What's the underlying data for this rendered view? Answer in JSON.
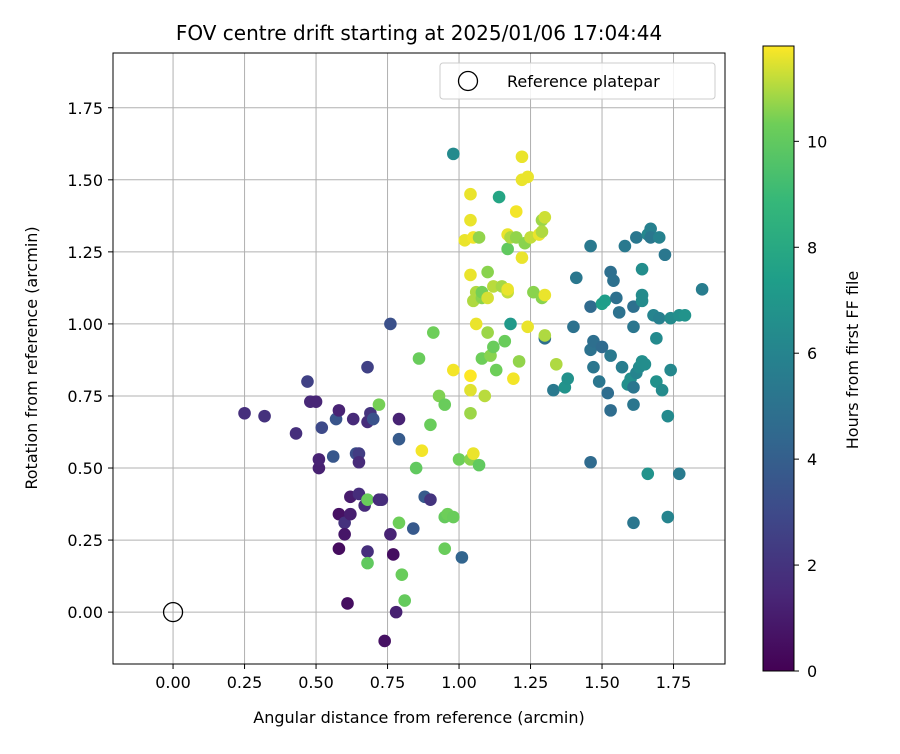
{
  "chart_data": {
    "type": "scatter",
    "title": "FOV centre drift starting at 2025/01/06 17:04:44",
    "xlabel": "Angular distance from reference (arcmin)",
    "ylabel": "Rotation from reference (arcmin)",
    "xlim": [
      -0.21,
      1.93
    ],
    "ylim": [
      -0.18,
      1.94
    ],
    "xticks": [
      0.0,
      0.25,
      0.5,
      0.75,
      1.0,
      1.25,
      1.5,
      1.75
    ],
    "xtick_labels": [
      "0.00",
      "0.25",
      "0.50",
      "0.75",
      "1.00",
      "1.25",
      "1.50",
      "1.75"
    ],
    "yticks": [
      0.0,
      0.25,
      0.5,
      0.75,
      1.0,
      1.25,
      1.5,
      1.75
    ],
    "ytick_labels": [
      "0.00",
      "0.25",
      "0.50",
      "0.75",
      "1.00",
      "1.25",
      "1.50",
      "1.75"
    ],
    "grid": true,
    "legend": {
      "position": "top-right",
      "entries": [
        {
          "label": "Reference platepar",
          "marker": "open-circle"
        }
      ]
    },
    "reference_point": {
      "x": 0.0,
      "y": 0.0
    },
    "colorbar": {
      "label": "Hours from first FF file",
      "colormap": "viridis",
      "range": [
        0,
        11.8
      ],
      "ticks": [
        0,
        2,
        4,
        6,
        8,
        10
      ],
      "tick_labels": [
        "0",
        "2",
        "4",
        "6",
        "8",
        "10"
      ]
    },
    "points_columns": [
      "x",
      "y",
      "hours"
    ],
    "points": [
      [
        0.25,
        0.69,
        1.8
      ],
      [
        0.32,
        0.68,
        1.9
      ],
      [
        0.43,
        0.62,
        1.8
      ],
      [
        0.47,
        0.8,
        2.6
      ],
      [
        0.48,
        0.73,
        1.5
      ],
      [
        0.5,
        0.73,
        1.4
      ],
      [
        0.51,
        0.5,
        1.2
      ],
      [
        0.51,
        0.53,
        1.3
      ],
      [
        0.52,
        0.64,
        3.0
      ],
      [
        0.57,
        0.67,
        3.5
      ],
      [
        0.56,
        0.54,
        3.6
      ],
      [
        0.58,
        0.7,
        1.3
      ],
      [
        0.58,
        0.34,
        0.6
      ],
      [
        0.58,
        0.22,
        0.4
      ],
      [
        0.6,
        0.31,
        1.9
      ],
      [
        0.6,
        0.27,
        0.8
      ],
      [
        0.61,
        0.03,
        0.5
      ],
      [
        0.62,
        0.34,
        1.1
      ],
      [
        0.62,
        0.4,
        1.0
      ],
      [
        0.63,
        0.67,
        1.6
      ],
      [
        0.64,
        0.55,
        3.3
      ],
      [
        0.65,
        0.55,
        2.4
      ],
      [
        0.65,
        0.41,
        1.7
      ],
      [
        0.65,
        0.52,
        1.6
      ],
      [
        0.67,
        0.37,
        1.6
      ],
      [
        0.68,
        0.85,
        2.6
      ],
      [
        0.68,
        0.21,
        1.8
      ],
      [
        0.68,
        0.66,
        1.7
      ],
      [
        0.69,
        0.69,
        2.0
      ],
      [
        0.7,
        0.67,
        3.4
      ],
      [
        0.68,
        0.39,
        10.2
      ],
      [
        0.68,
        0.17,
        10.0
      ],
      [
        0.72,
        0.72,
        10.4
      ],
      [
        0.72,
        0.39,
        1.6
      ],
      [
        0.73,
        0.39,
        1.7
      ],
      [
        0.74,
        -0.1,
        0.6
      ],
      [
        0.76,
        1.0,
        3.3
      ],
      [
        0.76,
        0.27,
        1.3
      ],
      [
        0.77,
        0.2,
        0.5
      ],
      [
        0.78,
        0.0,
        1.2
      ],
      [
        0.79,
        0.67,
        1.3
      ],
      [
        0.79,
        0.6,
        3.8
      ],
      [
        0.79,
        0.31,
        10.3
      ],
      [
        0.8,
        0.13,
        10.2
      ],
      [
        0.81,
        0.04,
        10.1
      ],
      [
        0.84,
        0.29,
        3.7
      ],
      [
        0.85,
        0.5,
        10.0
      ],
      [
        0.86,
        0.88,
        10.2
      ],
      [
        0.87,
        0.56,
        11.7
      ],
      [
        0.88,
        0.4,
        3.8
      ],
      [
        0.9,
        0.39,
        2.0
      ],
      [
        0.9,
        0.65,
        10.2
      ],
      [
        0.91,
        0.97,
        10.3
      ],
      [
        0.93,
        0.75,
        10.5
      ],
      [
        0.95,
        0.72,
        10.2
      ],
      [
        0.95,
        0.33,
        10.1
      ],
      [
        0.95,
        0.22,
        10.2
      ],
      [
        0.96,
        0.34,
        10.3
      ],
      [
        0.98,
        0.33,
        10.2
      ],
      [
        0.98,
        0.84,
        11.7
      ],
      [
        0.98,
        1.59,
        6.3
      ],
      [
        1.0,
        0.53,
        10.3
      ],
      [
        1.01,
        0.19,
        4.3
      ],
      [
        1.02,
        1.29,
        11.6
      ],
      [
        1.04,
        0.82,
        11.8
      ],
      [
        1.04,
        0.77,
        11.5
      ],
      [
        1.04,
        0.69,
        10.8
      ],
      [
        1.04,
        1.17,
        11.6
      ],
      [
        1.04,
        1.36,
        11.6
      ],
      [
        1.04,
        1.45,
        11.6
      ],
      [
        1.04,
        0.53,
        10.6
      ],
      [
        1.05,
        0.55,
        11.6
      ],
      [
        1.05,
        1.08,
        11.0
      ],
      [
        1.05,
        1.3,
        11.7
      ],
      [
        1.06,
        1.11,
        11.0
      ],
      [
        1.06,
        1.0,
        11.6
      ],
      [
        1.07,
        1.3,
        10.7
      ],
      [
        1.07,
        0.51,
        10.0
      ],
      [
        1.08,
        1.09,
        10.6
      ],
      [
        1.08,
        1.11,
        10.4
      ],
      [
        1.08,
        0.88,
        10.3
      ],
      [
        1.09,
        0.75,
        11.1
      ],
      [
        1.1,
        1.09,
        11.4
      ],
      [
        1.1,
        1.18,
        10.6
      ],
      [
        1.1,
        0.97,
        10.8
      ],
      [
        1.11,
        0.89,
        10.6
      ],
      [
        1.12,
        0.92,
        10.2
      ],
      [
        1.12,
        1.13,
        11.1
      ],
      [
        1.13,
        0.84,
        10.3
      ],
      [
        1.14,
        1.44,
        7.8
      ],
      [
        1.15,
        1.13,
        10.9
      ],
      [
        1.16,
        0.94,
        10.2
      ],
      [
        1.17,
        1.26,
        10.0
      ],
      [
        1.17,
        1.31,
        11.6
      ],
      [
        1.17,
        1.11,
        11.2
      ],
      [
        1.17,
        1.12,
        11.6
      ],
      [
        1.18,
        1.0,
        7.1
      ],
      [
        1.18,
        1.3,
        11.0
      ],
      [
        1.19,
        0.81,
        11.7
      ],
      [
        1.2,
        1.39,
        11.7
      ],
      [
        1.2,
        1.3,
        10.7
      ],
      [
        1.21,
        0.87,
        10.7
      ],
      [
        1.22,
        1.58,
        11.6
      ],
      [
        1.22,
        1.5,
        11.6
      ],
      [
        1.22,
        1.23,
        11.6
      ],
      [
        1.23,
        1.28,
        10.6
      ],
      [
        1.24,
        1.51,
        11.6
      ],
      [
        1.24,
        0.99,
        11.6
      ],
      [
        1.25,
        1.3,
        11.2
      ],
      [
        1.26,
        1.11,
        10.6
      ],
      [
        1.28,
        1.31,
        11.6
      ],
      [
        1.29,
        1.36,
        10.8
      ],
      [
        1.29,
        1.32,
        11.0
      ],
      [
        1.29,
        1.09,
        10.6
      ],
      [
        1.3,
        0.95,
        4.8
      ],
      [
        1.3,
        0.96,
        11.0
      ],
      [
        1.3,
        1.37,
        11.3
      ],
      [
        1.3,
        1.1,
        11.6
      ],
      [
        1.33,
        0.77,
        5.4
      ],
      [
        1.34,
        0.86,
        11.0
      ],
      [
        1.37,
        0.78,
        6.8
      ],
      [
        1.38,
        0.81,
        6.7
      ],
      [
        1.4,
        0.99,
        5.0
      ],
      [
        1.41,
        1.16,
        5.3
      ],
      [
        1.46,
        1.27,
        5.4
      ],
      [
        1.46,
        1.06,
        4.6
      ],
      [
        1.46,
        0.91,
        5.0
      ],
      [
        1.46,
        0.52,
        4.6
      ],
      [
        1.47,
        0.94,
        4.8
      ],
      [
        1.47,
        0.85,
        5.2
      ],
      [
        1.49,
        0.8,
        5.2
      ],
      [
        1.5,
        1.07,
        7.5
      ],
      [
        1.5,
        0.92,
        4.6
      ],
      [
        1.51,
        1.08,
        7.4
      ],
      [
        1.52,
        0.76,
        4.7
      ],
      [
        1.53,
        0.89,
        5.4
      ],
      [
        1.53,
        1.18,
        4.8
      ],
      [
        1.53,
        0.7,
        4.7
      ],
      [
        1.54,
        1.15,
        4.9
      ],
      [
        1.55,
        1.09,
        4.9
      ],
      [
        1.56,
        1.04,
        5.0
      ],
      [
        1.57,
        0.85,
        5.6
      ],
      [
        1.58,
        1.27,
        5.4
      ],
      [
        1.59,
        0.79,
        6.6
      ],
      [
        1.6,
        0.81,
        6.6
      ],
      [
        1.61,
        0.31,
        5.2
      ],
      [
        1.61,
        0.72,
        5.2
      ],
      [
        1.61,
        0.99,
        5.2
      ],
      [
        1.61,
        1.06,
        4.9
      ],
      [
        1.61,
        0.78,
        5.2
      ],
      [
        1.62,
        0.83,
        6.0
      ],
      [
        1.62,
        1.3,
        5.3
      ],
      [
        1.63,
        0.85,
        6.3
      ],
      [
        1.64,
        0.86,
        6.3
      ],
      [
        1.64,
        1.1,
        6.4
      ],
      [
        1.64,
        1.08,
        6.4
      ],
      [
        1.64,
        1.19,
        6.5
      ],
      [
        1.64,
        0.87,
        6.6
      ],
      [
        1.65,
        0.86,
        6.5
      ],
      [
        1.66,
        1.31,
        6.2
      ],
      [
        1.66,
        0.48,
        6.8
      ],
      [
        1.67,
        1.33,
        5.8
      ],
      [
        1.67,
        1.3,
        5.3
      ],
      [
        1.68,
        1.03,
        6.0
      ],
      [
        1.69,
        0.95,
        6.3
      ],
      [
        1.69,
        0.8,
        6.7
      ],
      [
        1.7,
        1.02,
        5.8
      ],
      [
        1.7,
        1.3,
        5.9
      ],
      [
        1.71,
        0.77,
        6.4
      ],
      [
        1.72,
        1.24,
        5.3
      ],
      [
        1.73,
        0.68,
        6.3
      ],
      [
        1.73,
        0.33,
        6.0
      ],
      [
        1.74,
        0.84,
        6.2
      ],
      [
        1.74,
        1.02,
        6.4
      ],
      [
        1.77,
        0.48,
        5.5
      ],
      [
        1.77,
        1.03,
        6.6
      ],
      [
        1.79,
        1.03,
        6.8
      ],
      [
        1.85,
        1.12,
        5.6
      ]
    ]
  }
}
